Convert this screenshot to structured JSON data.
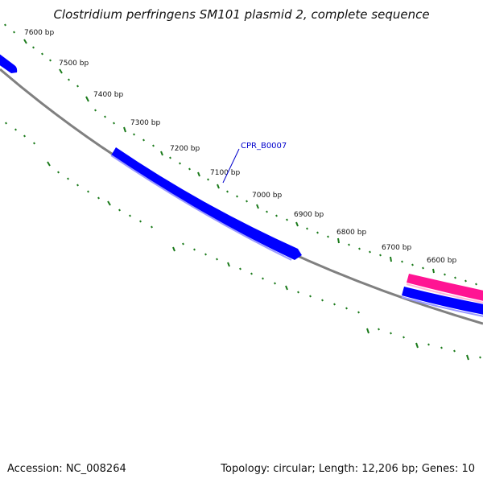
{
  "title": "Clostridium perfringens SM101 plasmid 2, complete sequence",
  "tick_labels": [
    "7600 bp",
    "7500 bp",
    "7400 bp",
    "7300 bp",
    "7200 bp",
    "7100 bp",
    "7000 bp",
    "6900 bp",
    "6800 bp",
    "6700 bp",
    "6600 bp"
  ],
  "gene_label": "CPR_B0007",
  "footer": {
    "accession": "Accession: NC_008264",
    "summary": "Topology: circular; Length: 12,206 bp; Genes: 10"
  },
  "colors": {
    "backbone": "#808080",
    "gene_forward": "#0000ff",
    "gene_reverse": "#ff1493",
    "gene_label": "#0000cc",
    "ticks": "#1a7a1a"
  }
}
